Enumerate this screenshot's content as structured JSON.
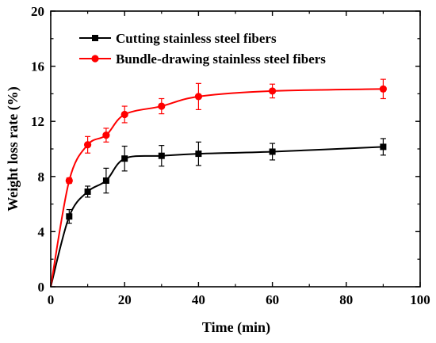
{
  "chart_data": {
    "type": "line",
    "xlabel": "Time (min)",
    "ylabel": "Weight loss rate (%)",
    "xlim": [
      0,
      100
    ],
    "ylim": [
      0,
      20
    ],
    "xticks": [
      0,
      20,
      40,
      60,
      80,
      100
    ],
    "yticks": [
      0,
      4,
      8,
      12,
      16,
      20
    ],
    "grid": false,
    "legend_position": "top-left",
    "series": [
      {
        "name": "Cutting stainless steel fibers",
        "color": "#000000",
        "marker": "square",
        "x": [
          0,
          5,
          10,
          15,
          20,
          30,
          40,
          60,
          90
        ],
        "y": [
          0,
          5.1,
          6.9,
          7.7,
          9.3,
          9.5,
          9.65,
          9.8,
          10.15
        ],
        "error": [
          0,
          0.5,
          0.4,
          0.9,
          0.9,
          0.75,
          0.85,
          0.6,
          0.6
        ]
      },
      {
        "name": "Bundle-drawing stainless steel fibers",
        "color": "#ff0000",
        "marker": "circle",
        "x": [
          0,
          5,
          10,
          15,
          20,
          30,
          40,
          60,
          90
        ],
        "y": [
          0,
          7.7,
          10.3,
          11.0,
          12.5,
          13.1,
          13.8,
          14.2,
          14.35
        ],
        "error": [
          0,
          0.2,
          0.6,
          0.5,
          0.6,
          0.55,
          0.95,
          0.5,
          0.7
        ]
      }
    ]
  }
}
